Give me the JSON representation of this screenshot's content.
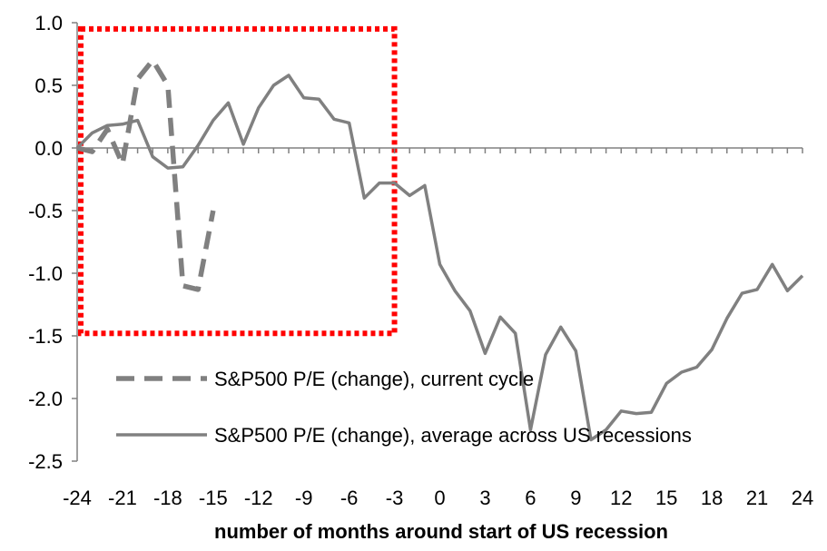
{
  "chart_data": {
    "type": "line",
    "xlabel": "number of months around start of US recession",
    "ylabel": "",
    "xlim": [
      -24,
      24
    ],
    "ylim": [
      -2.5,
      1.0
    ],
    "x_ticks": [
      -24,
      -21,
      -18,
      -15,
      -12,
      -9,
      -6,
      -3,
      0,
      3,
      6,
      9,
      12,
      15,
      18,
      21,
      24
    ],
    "x_tick_labels": [
      "-24",
      "-21",
      "-18",
      "-15",
      "-12",
      "-9",
      "-6",
      "-3",
      "0",
      "3",
      "6",
      "9",
      "12",
      "15",
      "18",
      "21",
      "24"
    ],
    "y_ticks": [
      1.0,
      0.5,
      0.0,
      -0.5,
      -1.0,
      -1.5,
      -2.0,
      -2.5
    ],
    "y_tick_labels": [
      "1.0",
      "0.5",
      "0.0",
      "-0.5",
      "-1.0",
      "-1.5",
      "-2.0",
      "-2.5"
    ],
    "grid": false,
    "legend_position": "bottom-center",
    "series": [
      {
        "name": "S&P500 P/E (change), current cycle",
        "style": "dashed",
        "color": "#808080",
        "x": [
          -24,
          -23,
          -22,
          -21,
          -20,
          -19,
          -18,
          -17,
          -16,
          -15
        ],
        "y": [
          0.0,
          -0.03,
          0.15,
          -0.13,
          0.55,
          0.7,
          0.5,
          -1.1,
          -1.13,
          -0.5
        ]
      },
      {
        "name": "S&P500 P/E (change), average across US recessions",
        "style": "solid",
        "color": "#808080",
        "x": [
          -24,
          -23,
          -22,
          -21,
          -20,
          -19,
          -18,
          -17,
          -16,
          -15,
          -14,
          -13,
          -12,
          -11,
          -10,
          -9,
          -8,
          -7,
          -6,
          -5,
          -4,
          -3,
          -2,
          -1,
          0,
          1,
          2,
          3,
          4,
          5,
          6,
          7,
          8,
          9,
          10,
          11,
          12,
          13,
          14,
          15,
          16,
          17,
          18,
          19,
          20,
          21,
          22,
          23,
          24
        ],
        "y": [
          0.0,
          0.12,
          0.18,
          0.19,
          0.22,
          -0.07,
          -0.16,
          -0.15,
          0.02,
          0.22,
          0.36,
          0.03,
          0.32,
          0.5,
          0.58,
          0.4,
          0.39,
          0.23,
          0.2,
          -0.4,
          -0.28,
          -0.28,
          -0.38,
          -0.3,
          -0.93,
          -1.14,
          -1.3,
          -1.64,
          -1.35,
          -1.48,
          -2.25,
          -1.65,
          -1.43,
          -1.62,
          -2.33,
          -2.25,
          -2.1,
          -2.12,
          -2.11,
          -1.88,
          -1.79,
          -1.75,
          -1.61,
          -1.36,
          -1.16,
          -1.13,
          -0.93,
          -1.14,
          -1.02
        ]
      }
    ],
    "annotations": [
      {
        "type": "highlight-box",
        "style": "dotted",
        "color": "#ff0000",
        "x_range": [
          -24,
          -3
        ],
        "y_range": [
          -1.48,
          0.95
        ]
      }
    ]
  }
}
